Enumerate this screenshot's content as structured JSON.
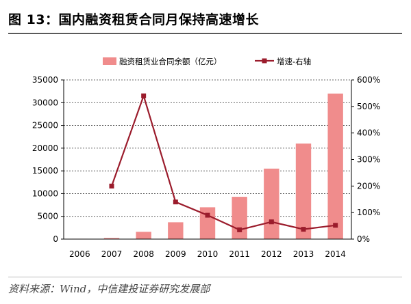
{
  "header": {
    "title": "图 13：国内融资租赁合同月保持高速增长"
  },
  "chart_data": {
    "type": "bar",
    "title": "",
    "xlabel": "",
    "ylabel": "",
    "categories": [
      "2006",
      "2007",
      "2008",
      "2009",
      "2010",
      "2011",
      "2012",
      "2013",
      "2014"
    ],
    "series": [
      {
        "name": "融资租赁业合同余额（亿元）",
        "type": "bar",
        "axis": "left",
        "color": "#f08c8c",
        "values": [
          80,
          240,
          1600,
          3700,
          7000,
          9300,
          15500,
          21000,
          32000
        ]
      },
      {
        "name": "增速-右轴",
        "type": "line",
        "axis": "right",
        "color": "#9b1c2c",
        "values": [
          null,
          200,
          540,
          140,
          90,
          35,
          65,
          37,
          52
        ]
      }
    ],
    "ylim_left": [
      0,
      35000
    ],
    "yticks_left": [
      "0",
      "5000",
      "10000",
      "15000",
      "20000",
      "25000",
      "30000",
      "35000"
    ],
    "ylim_right": [
      0,
      600
    ],
    "yticks_right": [
      "0%",
      "100%",
      "200%",
      "300%",
      "400%",
      "500%",
      "600%"
    ],
    "grid": true,
    "legend": "top"
  },
  "footer": {
    "source": "资料来源：Wind，中信建投证券研究发展部"
  }
}
